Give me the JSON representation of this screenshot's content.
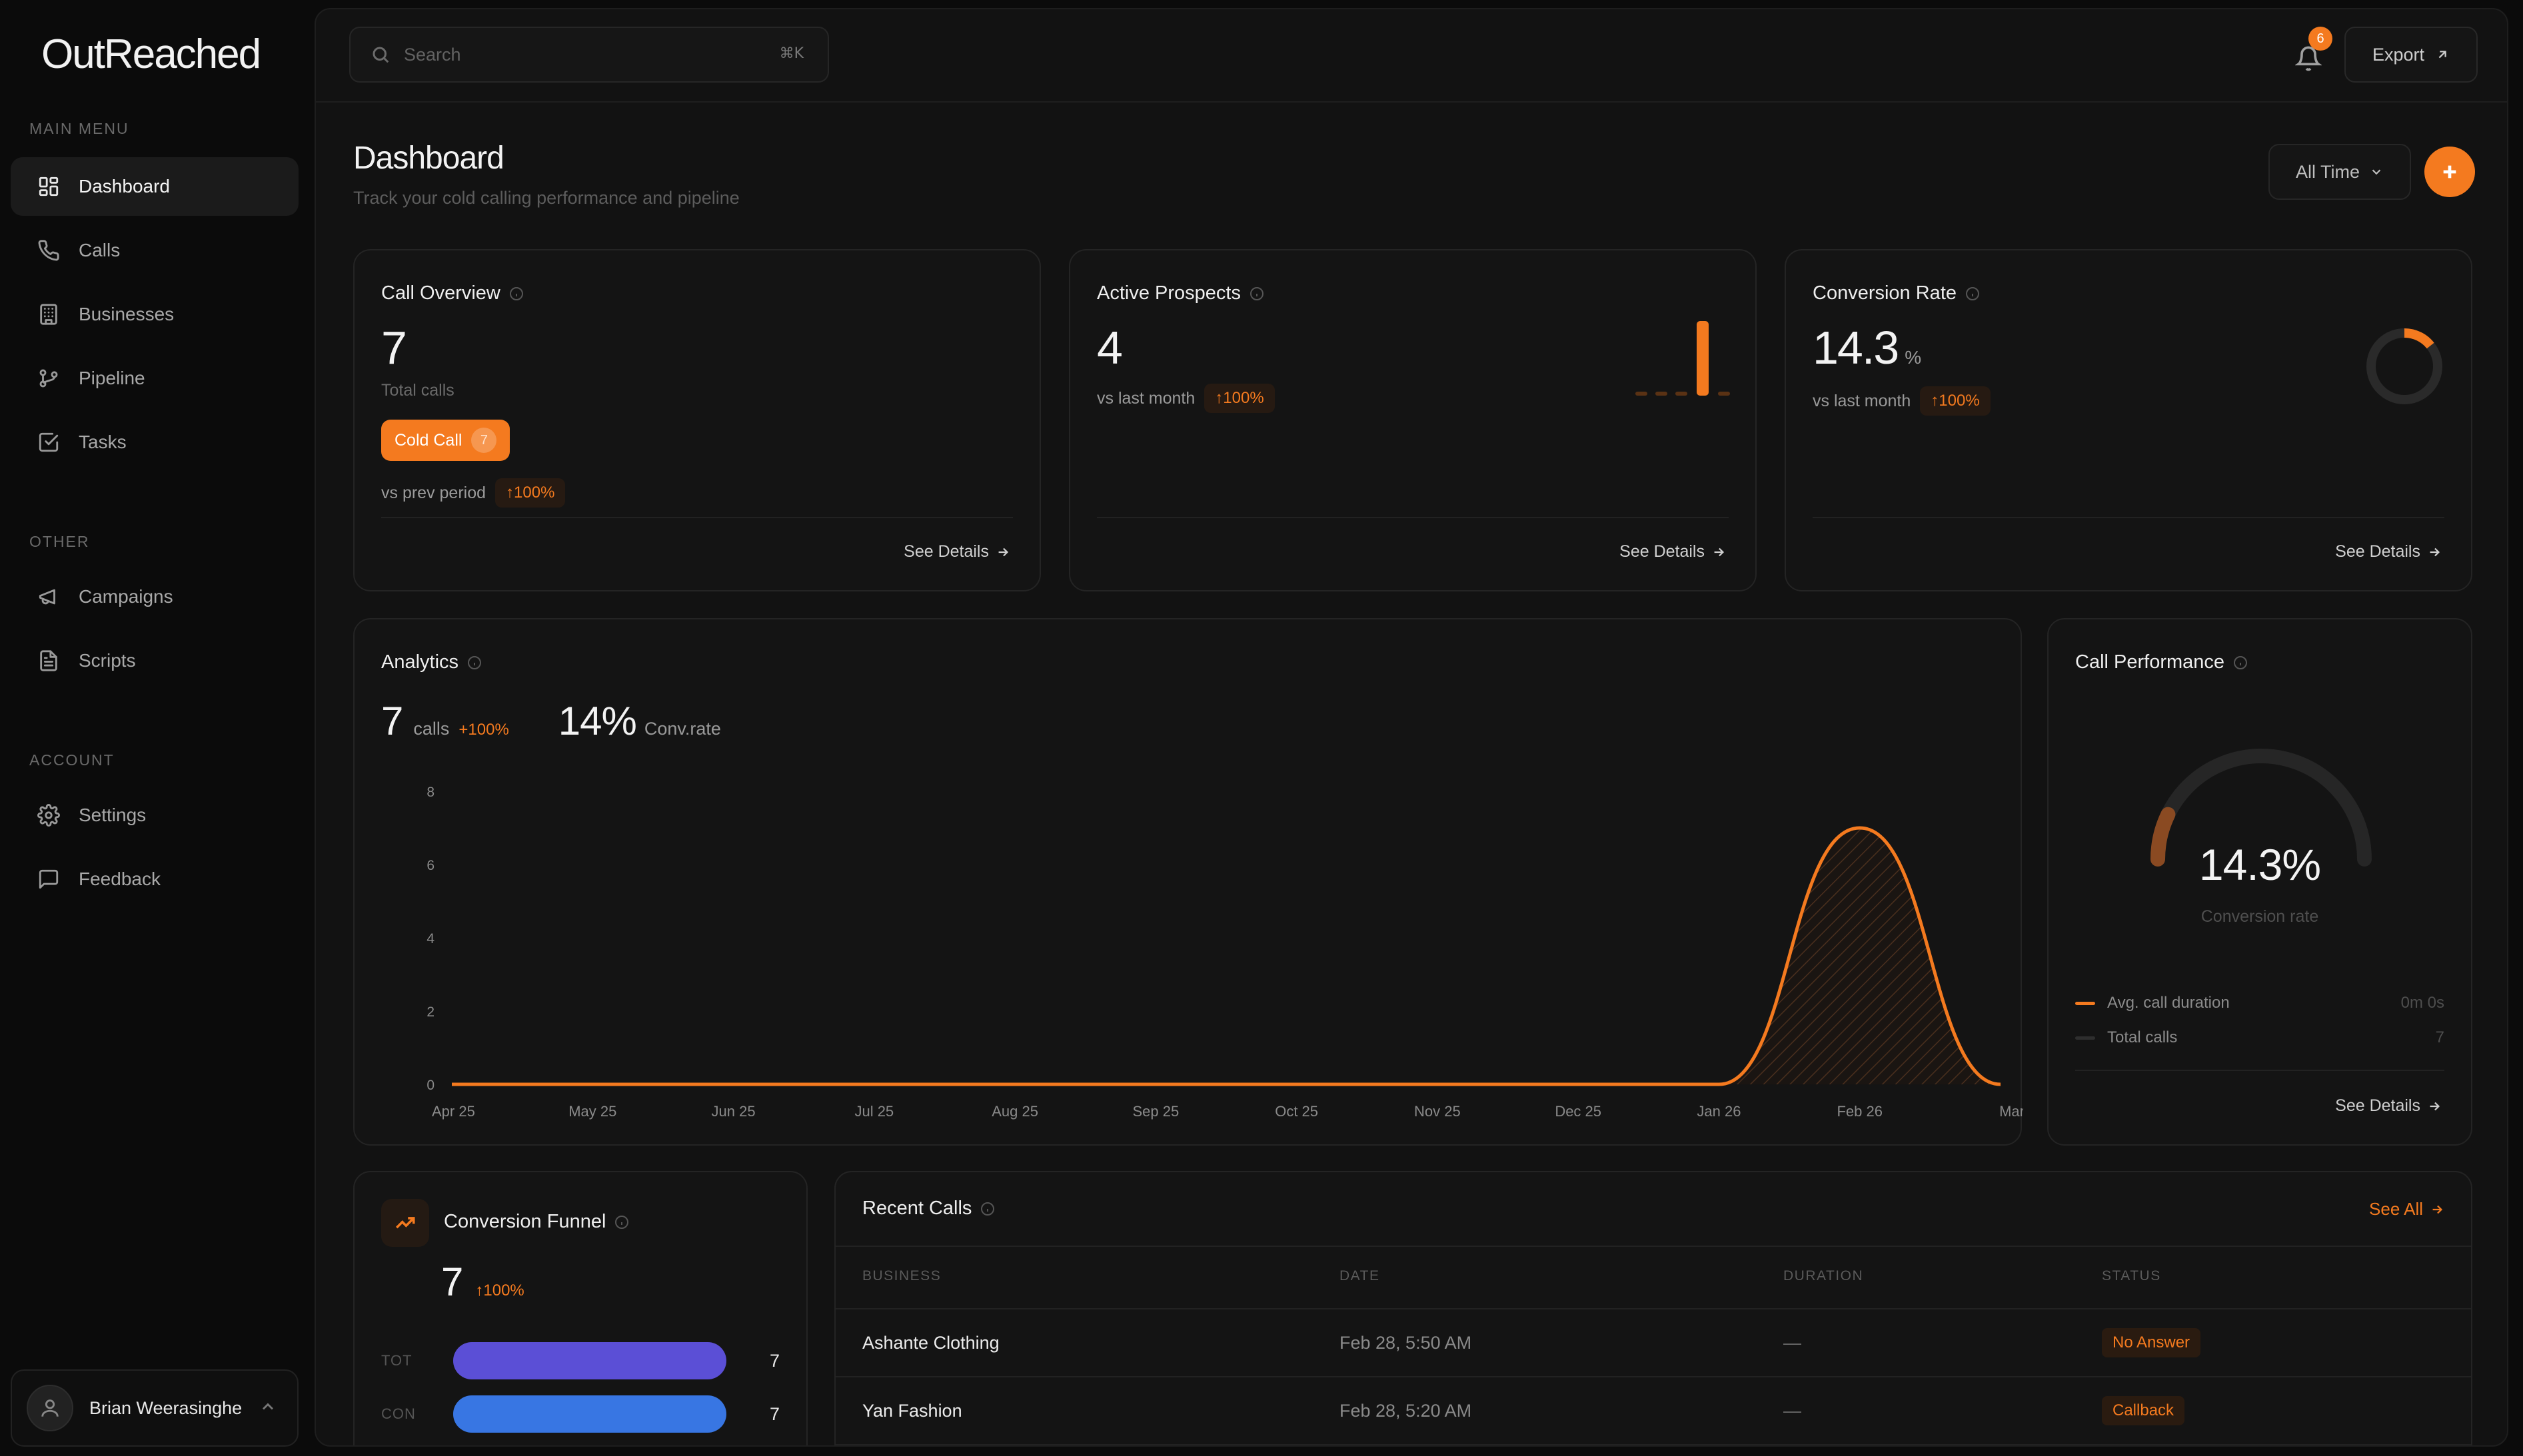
{
  "brand": "OutReached",
  "sidebar": {
    "sections": [
      {
        "label": "MAIN MENU",
        "items": [
          {
            "label": "Dashboard",
            "icon": "grid-icon",
            "active": true
          },
          {
            "label": "Calls",
            "icon": "phone-icon"
          },
          {
            "label": "Businesses",
            "icon": "building-icon"
          },
          {
            "label": "Pipeline",
            "icon": "git-branch-icon"
          },
          {
            "label": "Tasks",
            "icon": "check-square-icon"
          }
        ]
      },
      {
        "label": "OTHER",
        "items": [
          {
            "label": "Campaigns",
            "icon": "megaphone-icon"
          },
          {
            "label": "Scripts",
            "icon": "file-text-icon"
          }
        ]
      },
      {
        "label": "ACCOUNT",
        "items": [
          {
            "label": "Settings",
            "icon": "gear-icon"
          },
          {
            "label": "Feedback",
            "icon": "message-square-icon"
          }
        ]
      }
    ],
    "user": {
      "name": "Brian Weerasinghe"
    }
  },
  "topbar": {
    "search_placeholder": "Search",
    "search_shortcut": "⌘K",
    "notification_count": "6",
    "export_label": "Export"
  },
  "header": {
    "title": "Dashboard",
    "subtitle": "Track your cold calling performance and pipeline",
    "range_label": "All Time"
  },
  "cards": {
    "call_overview": {
      "title": "Call Overview",
      "value": "7",
      "value_label": "Total calls",
      "tag_label": "Cold Call",
      "tag_count": "7",
      "compare_label": "vs prev period",
      "delta": "↑100%",
      "link": "See Details"
    },
    "active_prospects": {
      "title": "Active Prospects",
      "value": "4",
      "compare_label": "vs last month",
      "delta": "↑100%",
      "link": "See Details"
    },
    "conversion_rate": {
      "title": "Conversion Rate",
      "value": "14.3",
      "unit": "%",
      "compare_label": "vs last month",
      "delta": "↑100%",
      "link": "See Details",
      "ring_fraction": 0.143
    }
  },
  "analytics": {
    "title": "Analytics",
    "calls_value": "7",
    "calls_label": "calls",
    "calls_delta": "+100%",
    "conv_value": "14%",
    "conv_label": "Conv.rate"
  },
  "chart_data": {
    "type": "area",
    "x": [
      "Apr 25",
      "May 25",
      "Jun 25",
      "Jul 25",
      "Aug 25",
      "Sep 25",
      "Oct 25",
      "Nov 25",
      "Dec 25",
      "Jan 26",
      "Feb 26",
      "Mar"
    ],
    "values": [
      0,
      0,
      0,
      0,
      0,
      0,
      0,
      0,
      0,
      0,
      7,
      0
    ],
    "yticks": [
      "8",
      "6",
      "4",
      "2",
      "0"
    ],
    "ylim": [
      0,
      8
    ],
    "color": "#f47a1f"
  },
  "call_performance": {
    "title": "Call Performance",
    "value": "14.3%",
    "value_label": "Conversion rate",
    "gauge_fraction": 0.143,
    "legend": [
      {
        "label": "Avg. call duration",
        "value": "0m 0s",
        "color": "#f47a1f"
      },
      {
        "label": "Total calls",
        "value": "7",
        "color": "#2e2e2e"
      }
    ],
    "link": "See Details"
  },
  "funnel": {
    "title": "Conversion Funnel",
    "value": "7",
    "delta": "↑100%",
    "rows": [
      {
        "code": "TOT",
        "value": "7",
        "color": "#5b4fd6"
      },
      {
        "code": "CON",
        "value": "7",
        "color": "#3876e3"
      }
    ]
  },
  "recent_calls": {
    "title": "Recent Calls",
    "see_all": "See All",
    "columns": [
      "BUSINESS",
      "DATE",
      "DURATION",
      "STATUS"
    ],
    "rows": [
      {
        "business": "Ashante Clothing",
        "date": "Feb 28, 5:50 AM",
        "duration": "—",
        "status": "No Answer"
      },
      {
        "business": "Yan Fashion",
        "date": "Feb 28, 5:20 AM",
        "duration": "—",
        "status": "Callback"
      }
    ]
  },
  "colors": {
    "accent": "#f47a1f",
    "background": "#0b0b0b",
    "surface": "#141414"
  }
}
